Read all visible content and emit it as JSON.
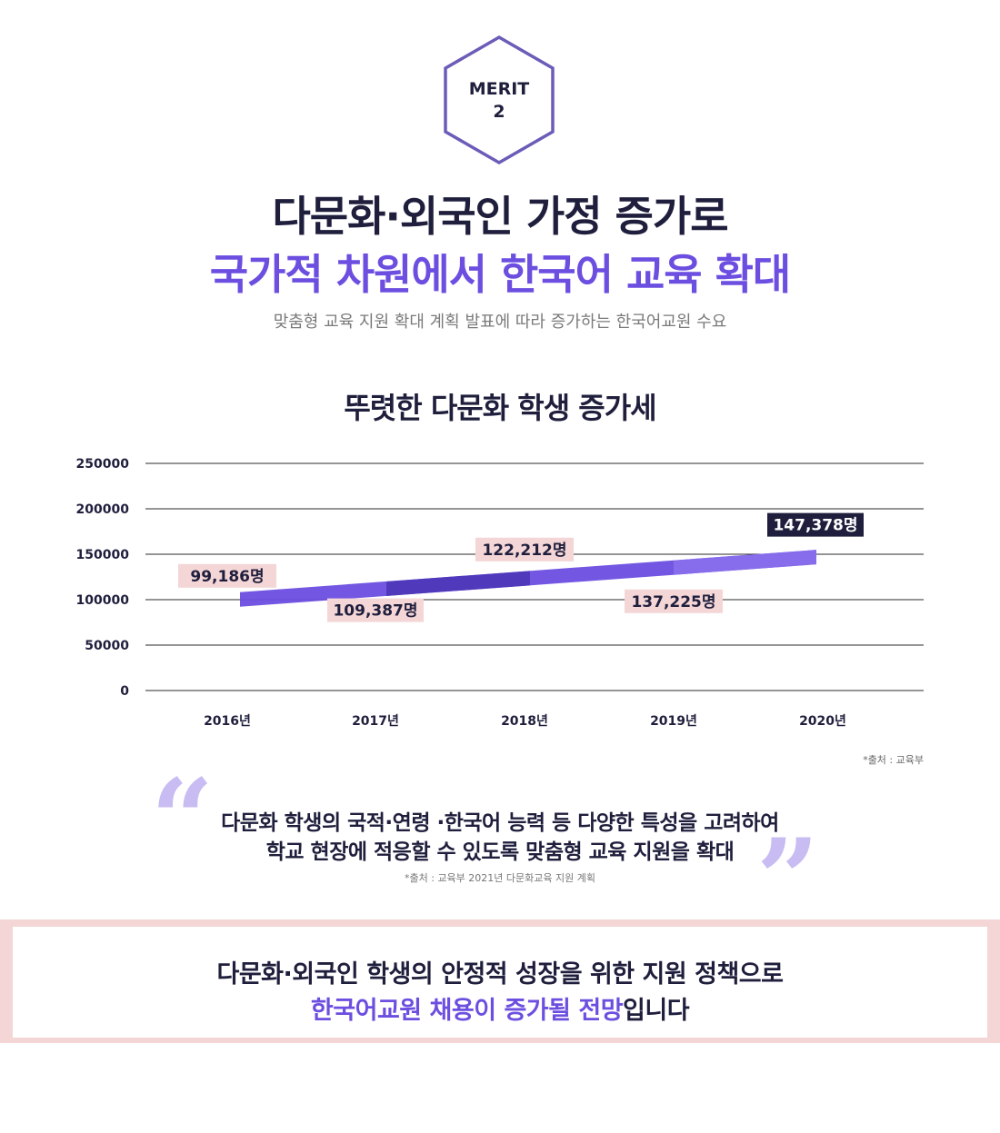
{
  "badge": {
    "line1": "MERIT",
    "line2": "2",
    "color": "#6c5cb8"
  },
  "headline": {
    "line1": "다문화·외국인 가정 증가로",
    "line2": "국가적 차원에서 한국어 교육 확대"
  },
  "subtitle": "맞춤형 교육 지원 확대 계획 발표에 따라 증가하는 한국어교원 수요",
  "chart_title": "뚜렷한 다문화 학생 증가세",
  "chart_data": {
    "type": "line",
    "categories": [
      "2016년",
      "2017년",
      "2018년",
      "2019년",
      "2020년"
    ],
    "series": [
      {
        "values": [
          99186,
          109387,
          122212,
          137225,
          147378
        ]
      }
    ],
    "data_labels": [
      "99,186명",
      "109,387명",
      "122,212명",
      "137,225명",
      "147,378명"
    ],
    "yticks": [
      "250000",
      "200000",
      "150000",
      "100000",
      "50000",
      "0"
    ],
    "ylim": [
      0,
      250000
    ],
    "grid": true,
    "line_color": "#6c4ee0",
    "label_bg": "#f4d6d6",
    "highlight_label_bg": "#1f1f3d"
  },
  "source": "*출처 : 교육부",
  "quote": {
    "open_mark": "“",
    "close_mark": "”",
    "line1": "다문화 학생의 국적·연령 ·한국어 능력 등 다양한 특성을 고려하여",
    "line2": "학교 현장에 적응할 수 있도록 맞춤형 교육 지원을 확대",
    "source": "*출처 : 교육부 2021년 다문화교육 지원 계획"
  },
  "banner": {
    "line1": "다문화·외국인 학생의 안정적 성장을 위한 지원 정책으로",
    "line2_accent": "한국어교원 채용이 증가될 전망",
    "line2_rest": "입니다"
  }
}
